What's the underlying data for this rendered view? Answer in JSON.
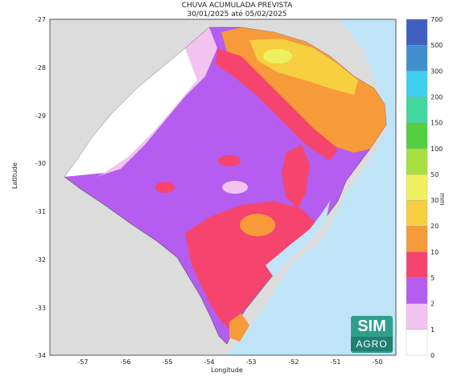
{
  "map": {
    "title_line1": "CHUVA ACUMULADA PREVISTA",
    "title_line2": "30/01/2025 até 05/02/2025",
    "xlabel": "Longitude",
    "ylabel": "Latitude",
    "x_ticks": [
      "-57",
      "-56",
      "-55",
      "-54",
      "-53",
      "-52",
      "-51",
      "-50"
    ],
    "y_ticks": [
      "-27",
      "-28",
      "-29",
      "-30",
      "-31",
      "-32",
      "-33",
      "-34"
    ]
  },
  "colorbar": {
    "unit": "mm",
    "levels": [
      "0",
      "1",
      "2",
      "5",
      "10",
      "20",
      "30",
      "50",
      "100",
      "150",
      "200",
      "300",
      "500",
      "700"
    ],
    "colors": [
      "#ffffff",
      "#f2c3f0",
      "#b45df0",
      "#f5456e",
      "#f79a3a",
      "#f6d040",
      "#eef060",
      "#a8e040",
      "#52d040",
      "#40d8a0",
      "#40d0f0",
      "#4090d0",
      "#4060c0"
    ]
  },
  "logo": {
    "line1": "SIM",
    "line2": "AGRO"
  },
  "colors": {
    "land_outside": "#dcdcdc",
    "ocean": "#bfe3f7",
    "violet": "#b45df0",
    "pink": "#f2c3f0",
    "white": "#ffffff",
    "red": "#f5456e",
    "orange": "#f79a3a",
    "yellow": "#f6d040",
    "lightgreen": "#c8e860"
  }
}
